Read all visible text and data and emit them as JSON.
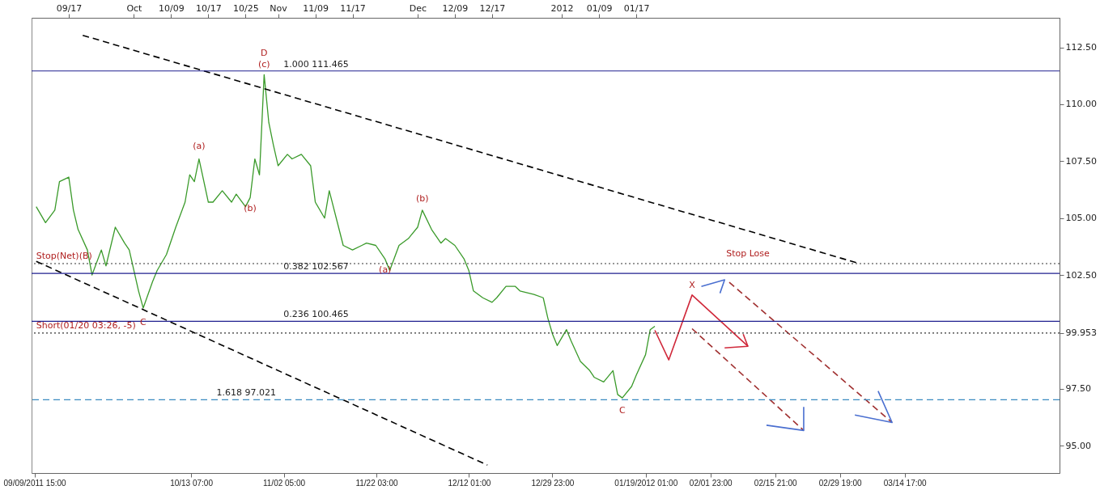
{
  "chart_data": {
    "type": "line",
    "grid": false,
    "marker": "none",
    "xlim": [
      "2011-09-09",
      "2012-04-17"
    ],
    "legend": false,
    "ylim": [
      93.8,
      113.8
    ],
    "xticks": [
      {
        "value": "2011-09-09T15:00",
        "label": "09/09/2011 15:00"
      },
      {
        "value": "2011-10-13T07:00",
        "label": "10/13 07:00"
      },
      {
        "value": "2011-11-02T05:00",
        "label": "11/02 05:00"
      },
      {
        "value": "2011-11-22T03:00",
        "label": "11/22 03:00"
      },
      {
        "value": "2011-12-12T01:00",
        "label": "12/12 01:00"
      },
      {
        "value": "2011-12-29T23:00",
        "label": "12/29 23:00"
      },
      {
        "value": "2012-01-19T01:00",
        "label": "01/19/2012 01:00"
      },
      {
        "value": "2012-02-01T23:00",
        "label": "02/01 23:00"
      },
      {
        "value": "2012-02-15T21:00",
        "label": "02/15 21:00"
      },
      {
        "value": "2012-02-29T19:00",
        "label": "02/29 19:00"
      },
      {
        "value": "2012-03-14T17:00",
        "label": "03/14 17:00"
      }
    ],
    "x2lim": [
      "2011-09-09",
      "2012-04-17"
    ],
    "x2ticks": [
      {
        "value": "2011-09-17",
        "label": "09/17"
      },
      {
        "value": "2011-10-01",
        "label": "Oct"
      },
      {
        "value": "2011-10-09",
        "label": "10/09"
      },
      {
        "value": "2011-10-17",
        "label": "10/17"
      },
      {
        "value": "2011-10-25",
        "label": "10/25"
      },
      {
        "value": "2011-11-01",
        "label": "Nov"
      },
      {
        "value": "2011-11-09",
        "label": "11/09"
      },
      {
        "value": "2011-11-17",
        "label": "11/17"
      },
      {
        "value": "2011-12-01",
        "label": "Dec"
      },
      {
        "value": "2011-12-09",
        "label": "12/09"
      },
      {
        "value": "2011-12-17",
        "label": "12/17"
      },
      {
        "value": "2012-01-01",
        "label": "2012"
      },
      {
        "value": "2012-01-09",
        "label": "01/09"
      },
      {
        "value": "2012-01-17",
        "label": "01/17"
      }
    ],
    "yticks": [
      {
        "value": 95,
        "label": "95.00"
      },
      {
        "value": 97.5,
        "label": "97.50"
      },
      {
        "value": 99.953,
        "label": "99.953"
      },
      {
        "value": 102.5,
        "label": "102.50"
      },
      {
        "value": 105,
        "label": "105.00"
      },
      {
        "value": 107.5,
        "label": "107.50"
      },
      {
        "value": 110,
        "label": "110.00"
      },
      {
        "value": 112.5,
        "label": "112.50"
      }
    ],
    "series": [
      {
        "color": "#3a9a2a",
        "line_style": "solid",
        "x": [
          "2011-09-10",
          "2011-09-12",
          "2011-09-14",
          "2011-09-15",
          "2011-09-17",
          "2011-09-18",
          "2011-09-19",
          "2011-09-21",
          "2011-09-22",
          "2011-09-24",
          "2011-09-25",
          "2011-09-27",
          "2011-09-29",
          "2011-09-30",
          "2011-10-02",
          "2011-10-03",
          "2011-10-05",
          "2011-10-06",
          "2011-10-08",
          "2011-10-10",
          "2011-10-12",
          "2011-10-13",
          "2011-10-14",
          "2011-10-15",
          "2011-10-17",
          "2011-10-18",
          "2011-10-20",
          "2011-10-22",
          "2011-10-23",
          "2011-10-25",
          "2011-10-26",
          "2011-10-27",
          "2011-10-28",
          "2011-10-29",
          "2011-10-30",
          "2011-10-31",
          "2011-11-01",
          "2011-11-03",
          "2011-11-04",
          "2011-11-06",
          "2011-11-08",
          "2011-11-09",
          "2011-11-11",
          "2011-11-12",
          "2011-11-14",
          "2011-11-15",
          "2011-11-17",
          "2011-11-19",
          "2011-11-20",
          "2011-11-22",
          "2011-11-24",
          "2011-11-25",
          "2011-11-27",
          "2011-11-29",
          "2011-12-01",
          "2011-12-02",
          "2011-12-04",
          "2011-12-06",
          "2011-12-07",
          "2011-12-09",
          "2011-12-11",
          "2011-12-12",
          "2011-12-13",
          "2011-12-15",
          "2011-12-17",
          "2011-12-18",
          "2011-12-20",
          "2011-12-22",
          "2011-12-23",
          "2011-12-26",
          "2011-12-28",
          "2011-12-29",
          "2011-12-30",
          "2011-12-31",
          "2012-01-02",
          "2012-01-03",
          "2012-01-05",
          "2012-01-07",
          "2012-01-08",
          "2012-01-10",
          "2012-01-12",
          "2012-01-13",
          "2012-01-14",
          "2012-01-16",
          "2012-01-17",
          "2012-01-19",
          "2012-01-20",
          "2012-01-21"
        ],
        "values": [
          105.5,
          104.8,
          105.35,
          106.6,
          106.8,
          105.35,
          104.5,
          103.6,
          102.5,
          103.6,
          102.9,
          104.6,
          103.9,
          103.6,
          101.8,
          101.05,
          102.2,
          102.7,
          103.4,
          104.6,
          105.7,
          106.9,
          106.6,
          107.6,
          105.7,
          105.7,
          106.2,
          105.7,
          106.05,
          105.5,
          105.9,
          107.6,
          106.9,
          111.3,
          109.2,
          108.2,
          107.3,
          107.8,
          107.6,
          107.8,
          107.3,
          105.7,
          105,
          106.2,
          104.6,
          103.8,
          103.6,
          103.8,
          103.9,
          103.8,
          103.2,
          102.7,
          103.8,
          104.1,
          104.6,
          105.35,
          104.5,
          103.9,
          104.1,
          103.8,
          103.2,
          102.7,
          101.8,
          101.5,
          101.3,
          101.5,
          102,
          102,
          101.8,
          101.65,
          101.5,
          100.6,
          99.9,
          99.4,
          100.1,
          99.6,
          98.7,
          98.3,
          98,
          97.8,
          98.3,
          97.25,
          97.1,
          97.6,
          98.1,
          99,
          100.1,
          100.25
        ]
      },
      {
        "color": "#000000",
        "line_style": "dashed",
        "x": [
          "2011-09-20",
          "2012-03-05"
        ],
        "values": [
          113.03,
          103
        ]
      },
      {
        "color": "#000000",
        "line_style": "dashed",
        "x": [
          "2011-09-10",
          "2011-12-16"
        ],
        "values": [
          103.1,
          94.15
        ]
      },
      {
        "color": "#d0283a",
        "line_style": "solid",
        "x": [
          "2012-01-21",
          "2012-01-24",
          "2012-01-29",
          "2012-02-10"
        ],
        "values": [
          100.07,
          98.77,
          101.62,
          99.37
        ]
      },
      {
        "color": "#d0283a",
        "line_style": "solid",
        "x": [
          "2012-02-05",
          "2012-02-10",
          "2012-02-09"
        ],
        "values": [
          99.3,
          99.37,
          99.9
        ]
      },
      {
        "color": "#4a6fd0",
        "line_style": "solid",
        "x": [
          "2012-01-31",
          "2012-02-05",
          "2012-02-04"
        ],
        "values": [
          102,
          102.29,
          101.7
        ]
      },
      {
        "color": "#a03030",
        "line_style": "dashed",
        "x": [
          "2012-01-29",
          "2012-02-22"
        ],
        "values": [
          100.14,
          95.67
        ]
      },
      {
        "color": "#a03030",
        "line_style": "dashed",
        "x": [
          "2012-02-06",
          "2012-03-12"
        ],
        "values": [
          102.18,
          96.02
        ]
      },
      {
        "color": "#4a6fd0",
        "line_style": "solid",
        "x": [
          "2012-02-14",
          "2012-02-22",
          "2012-02-22"
        ],
        "values": [
          95.9,
          95.67,
          96.7
        ]
      },
      {
        "color": "#4a6fd0",
        "line_style": "solid",
        "x": [
          "2012-03-04",
          "2012-03-12",
          "2012-03-09"
        ],
        "values": [
          96.35,
          96.02,
          97.4
        ]
      }
    ],
    "ref_lines": [
      {
        "axis": "y",
        "value": 111.465,
        "label": "1.000 111.465",
        "color": "#1f1f8f",
        "line_style": "solid"
      },
      {
        "axis": "y",
        "value": 102.567,
        "label": "0.382 102.567",
        "color": "#1f1f8f",
        "line_style": "solid"
      },
      {
        "axis": "y",
        "value": 100.465,
        "label": "0.236 100.465",
        "color": "#1f1f8f",
        "line_style": "solid"
      },
      {
        "axis": "y",
        "value": 97.021,
        "label": "1.618 97.021",
        "color": "#3a8ac0",
        "line_style": "dashed"
      },
      {
        "axis": "y",
        "value": 103.0,
        "color": "#333333",
        "line_style": "dotted"
      },
      {
        "axis": "y",
        "value": 99.953,
        "color": "#333333",
        "line_style": "dotted"
      }
    ],
    "annotations": [
      {
        "text": "D",
        "x": "2011-10-29",
        "y": 111.3
      },
      {
        "text": "(c)",
        "x": "2011-10-29",
        "y": 111.3
      },
      {
        "text": "(a)",
        "x": "2011-10-15",
        "y": 107.6
      },
      {
        "text": "(b)",
        "x": "2011-10-26",
        "y": 105.9
      },
      {
        "text": "(b)",
        "x": "2011-12-02",
        "y": 105.35
      },
      {
        "text": "(a)",
        "x": "2011-11-24",
        "y": 103.2
      },
      {
        "text": "C",
        "x": "2011-10-03",
        "y": 101.05
      },
      {
        "text": "C",
        "x": "2012-01-14",
        "y": 97.1
      },
      {
        "text": "X",
        "x": "2012-01-29",
        "y": 101.62
      },
      {
        "text": "Stop Lose",
        "x": "2012-02-10",
        "y": 103.0
      },
      {
        "text": "Stop(Net)(B)",
        "x": "2011-09-10",
        "y": 103.0
      },
      {
        "text": "Short(01/20 03:26, -5)",
        "x": "2011-09-10",
        "y": 99.953
      }
    ]
  }
}
